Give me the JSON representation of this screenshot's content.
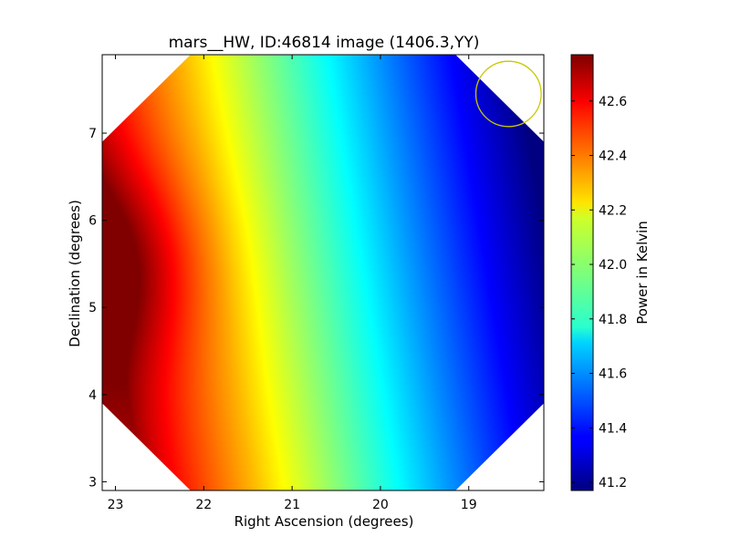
{
  "chart_data": {
    "type": "heatmap",
    "title": "mars__HW, ID:46814 image (1406.3,YY)",
    "xlabel": "Right Ascension (degrees)",
    "ylabel": "Declination (degrees)",
    "colorbar_label": "Power in Kelvin",
    "colormap": "jet",
    "x_axis_reversed": true,
    "xlim": [
      23.15,
      18.15
    ],
    "ylim": [
      2.9,
      7.9
    ],
    "x_ticks": [
      {
        "value": 23,
        "label": "23"
      },
      {
        "value": 22,
        "label": "22"
      },
      {
        "value": 21,
        "label": "21"
      },
      {
        "value": 20,
        "label": "20"
      },
      {
        "value": 19,
        "label": "19"
      }
    ],
    "y_ticks": [
      {
        "value": 3,
        "label": "3"
      },
      {
        "value": 4,
        "label": "4"
      },
      {
        "value": 5,
        "label": "5"
      },
      {
        "value": 6,
        "label": "6"
      },
      {
        "value": 7,
        "label": "7"
      }
    ],
    "colorbar_range": [
      41.17,
      42.77
    ],
    "colorbar_ticks": [
      {
        "value": 41.2,
        "label": "41.2"
      },
      {
        "value": 41.4,
        "label": "41.4"
      },
      {
        "value": 41.6,
        "label": "41.6"
      },
      {
        "value": 41.8,
        "label": "41.8"
      },
      {
        "value": 42.0,
        "label": "42.0"
      },
      {
        "value": 42.2,
        "label": "42.2"
      },
      {
        "value": 42.4,
        "label": "42.4"
      },
      {
        "value": 42.6,
        "label": "42.6"
      }
    ],
    "peak": {
      "ra": 23.1,
      "dec": 5.5,
      "value": 42.77
    },
    "minimum": {
      "ra": 18.2,
      "dec": 6.3,
      "value": 41.17
    },
    "beam_circle": {
      "ra": 18.55,
      "dec": 7.45,
      "radius_deg": 0.37,
      "color": "#c8c800"
    },
    "coverage_corner_cut_deg": 1.0
  }
}
